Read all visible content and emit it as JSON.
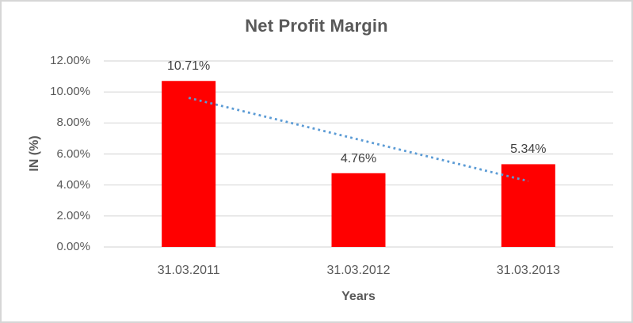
{
  "chart_data": {
    "type": "bar",
    "title": "Net Profit Margin",
    "xlabel": "Years",
    "ylabel": "IN (%)",
    "categories": [
      "31.03.2011",
      "31.03.2012",
      "31.03.2013"
    ],
    "values": [
      10.71,
      4.76,
      5.34
    ],
    "data_labels": [
      "10.71%",
      "4.76%",
      "5.34%"
    ],
    "ylim": [
      0,
      12
    ],
    "ytick_step": 2,
    "ytick_labels": [
      "0.00%",
      "2.00%",
      "4.00%",
      "6.00%",
      "8.00%",
      "10.00%",
      "12.00%"
    ],
    "grid": true,
    "legend": "none",
    "trendline": {
      "type": "linear",
      "style": "dotted",
      "start_value": 9.62,
      "end_value": 4.25
    },
    "colors": {
      "bar": "#FF0000",
      "trendline": "#5B9BD5",
      "gridline": "#D9D9D9",
      "axis_line": "#D9D9D9",
      "title_text": "#595959",
      "axis_text": "#595959",
      "data_label_text": "#404040",
      "chart_border": "#D6D6D6",
      "background": "#FFFFFF"
    }
  }
}
